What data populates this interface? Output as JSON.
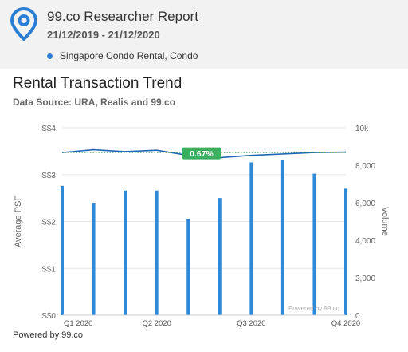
{
  "header": {
    "title": "99.co Researcher Report",
    "date_range": "21/12/2019 - 21/12/2020",
    "legend_label": "Singapore Condo Rental, Condo"
  },
  "chart_title": "Rental Transaction Trend",
  "chart_subtitle": "Data Source: URA, Realis and 99.co",
  "watermark": "Powered by 99.co",
  "footer": "Powered by 99.co",
  "colors": {
    "bar": "#2e8ad8",
    "line": "#2166b4",
    "trend": "#2b9a4a",
    "badge": "#3aaf5f",
    "logo": "#2a7fd4"
  },
  "chart_data": {
    "type": "bar-line",
    "categories": [
      "Q1 2020",
      "Q2 2020",
      "Q3 2020",
      "Q4 2020"
    ],
    "yleft": {
      "label": "Average PSF",
      "ticks": [
        "S$0",
        "S$1",
        "S$2",
        "S$3",
        "S$4"
      ],
      "range": [
        0,
        4
      ]
    },
    "yright": {
      "label": "Volume",
      "ticks": [
        "0",
        "2,000",
        "4,000",
        "6,000",
        "8,000",
        "10k"
      ],
      "range": [
        0,
        10000
      ]
    },
    "volume": [
      6900,
      6000,
      6650,
      6650,
      5150,
      6250,
      8150,
      8300,
      7550,
      6750
    ],
    "psf": [
      3.47,
      3.53,
      3.49,
      3.52,
      3.41,
      3.36,
      3.41,
      3.44,
      3.47,
      3.48
    ],
    "trend_change": "0.67%",
    "trend_y": 3.47
  }
}
